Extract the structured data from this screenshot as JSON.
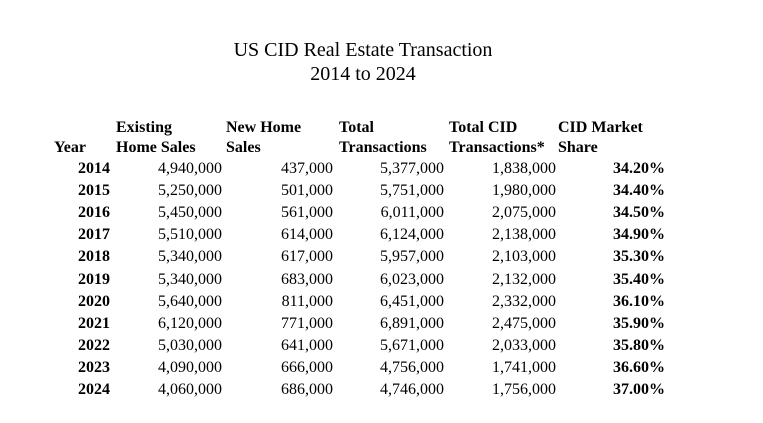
{
  "title": {
    "line1": "US CID Real Estate Transaction",
    "line2": "2014 to 2024"
  },
  "headers": [
    {
      "line1": "",
      "line2": "Year"
    },
    {
      "line1": "Existing",
      "line2": "Home Sales"
    },
    {
      "line1": "New Home",
      "line2": "Sales"
    },
    {
      "line1": "Total",
      "line2": "Transactions"
    },
    {
      "line1": "Total CID",
      "line2": "Transactions*"
    },
    {
      "line1": "CID Market",
      "line2": "Share"
    }
  ],
  "rows": [
    [
      "2014",
      "4,940,000",
      "437,000",
      "5,377,000",
      "1,838,000",
      "34.20%"
    ],
    [
      "2015",
      "5,250,000",
      "501,000",
      "5,751,000",
      "1,980,000",
      "34.40%"
    ],
    [
      "2016",
      "5,450,000",
      "561,000",
      "6,011,000",
      "2,075,000",
      "34.50%"
    ],
    [
      "2017",
      "5,510,000",
      "614,000",
      "6,124,000",
      "2,138,000",
      "34.90%"
    ],
    [
      "2018",
      "5,340,000",
      "617,000",
      "5,957,000",
      "2,103,000",
      "35.30%"
    ],
    [
      "2019",
      "5,340,000",
      "683,000",
      "6,023,000",
      "2,132,000",
      "35.40%"
    ],
    [
      "2020",
      "5,640,000",
      "811,000",
      "6,451,000",
      "2,332,000",
      "36.10%"
    ],
    [
      "2021",
      "6,120,000",
      "771,000",
      "6,891,000",
      "2,475,000",
      "35.90%"
    ],
    [
      "2022",
      "5,030,000",
      "641,000",
      "5,671,000",
      "2,033,000",
      "35.80%"
    ],
    [
      "2023",
      "4,090,000",
      "666,000",
      "4,756,000",
      "1,741,000",
      "36.60%"
    ],
    [
      "2024",
      "4,060,000",
      "686,000",
      "4,746,000",
      "1,756,000",
      "37.00%"
    ]
  ]
}
